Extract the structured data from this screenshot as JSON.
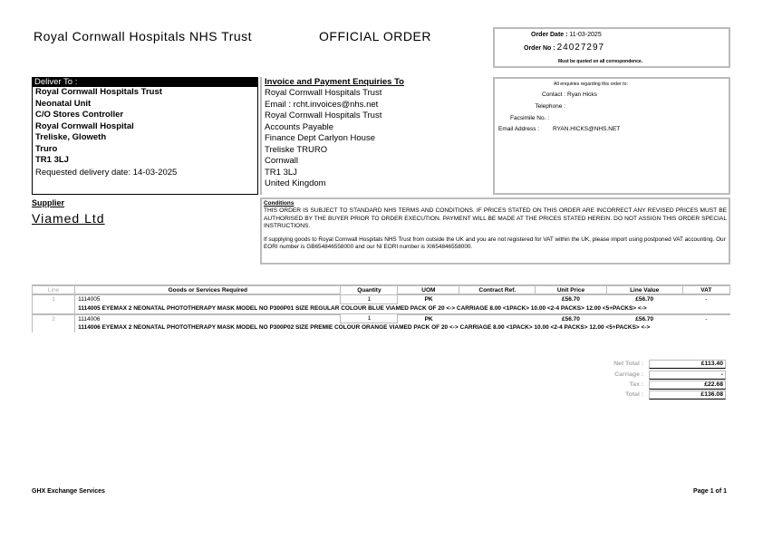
{
  "header": {
    "org": "Royal Cornwall Hospitals NHS Trust",
    "doc_title": "OFFICIAL ORDER",
    "order_date_label": "Order Date :",
    "order_date": "11-03-2025",
    "order_no_label": "Order No :",
    "order_no": "24027297",
    "quote_note": "Must be quoted on all correspondence."
  },
  "deliver": {
    "heading": "Deliver To :",
    "lines": [
      "Royal Cornwall Hospitals Trust",
      "Neonatal Unit",
      "C/O Stores Controller",
      "Royal Cornwall Hospital",
      "Treliske, Gloweth",
      "Truro",
      "TR1 3LJ"
    ],
    "requested": "Requested delivery date: 14-03-2025"
  },
  "invoice": {
    "heading": "Invoice and Payment Enquiries To",
    "lines": [
      "Royal Cornwall Hospitals Trust",
      "Email : rcht.invoices@nhs.net",
      "Royal Cornwall Hospitals Trust",
      "Accounts Payable",
      "Finance Dept Carlyon House",
      "Treliske TRURO",
      "Cornwall",
      "TR1 3LJ",
      "United Kingdom"
    ]
  },
  "enquiries": {
    "heading": "All enquiries regarding this order to:",
    "contact_label": "Contact :",
    "contact": "Ryan Hicks",
    "telephone_label": "Telephone :",
    "telephone": "",
    "fax_label": "Facsimile No. :",
    "fax": "",
    "email_label": "Email Address :",
    "email": "RYAN.HICKS@NHS.NET"
  },
  "supplier": {
    "heading": "Supplier",
    "name": "Viamed Ltd"
  },
  "conditions": {
    "heading": "Conditions",
    "p1": "THIS ORDER IS SUBJECT TO STANDARD NHS TERMS AND CONDITIONS. IF PRICES STATED ON THIS ORDER ARE INCORRECT ANY REVISED PRICES MUST BE AUTHORISED BY THE BUYER PRIOR TO ORDER EXECUTION. PAYMENT WILL BE MADE AT THE PRICES STATED HEREIN. DO NOT ASSIGN THIS ORDER SPECIAL INSTRUCTIONS.",
    "p2": "If supplying goods to Royal Cornwall Hospitals NHS Trust from outside the UK and you are not registered for VAT within the UK, please import using postponed VAT accounting. Our EORI number is GB654846558000 and our NI EORI number is XI654846558000."
  },
  "table": {
    "columns": [
      "Line",
      "Goods or Services Required",
      "Quantity",
      "UOM",
      "Contract Ref.",
      "Unit Price",
      "Line Value",
      "VAT"
    ],
    "rows": [
      {
        "line": "1",
        "code": "1114005",
        "qty": "1",
        "uom": "PK",
        "contract": "",
        "unit_price": "£56.70",
        "line_value": "£56.70",
        "vat": "-",
        "desc": "1114005 EYEMAX 2 NEONATAL PHOTOTHERAPY MASK MODEL NO P300P01 SIZE REGULAR COLOUR BLUE VIAMED PACK OF 20 <-> CARRIAGE 8.00 <1PACK> 10.00 <2-4 PACKS> 12.00 <5+PACKS> <->"
      },
      {
        "line": "2",
        "code": "1114006",
        "qty": "1",
        "uom": "PK",
        "contract": "",
        "unit_price": "£56.70",
        "line_value": "£56.70",
        "vat": "-",
        "desc": "1114006 EYEMAX 2 NEONATAL PHOTOTHERAPY MASK MODEL NO P300P02 SIZE PREMIE COLOUR ORANGE VIAMED PACK OF 20 <-> CARRIAGE 8.00 <1PACK> 10.00 <2-4 PACKS> 12.00 <5+PACKS> <->"
      }
    ]
  },
  "totals": {
    "net_label": "Net Total :",
    "net": "£113.40",
    "carriage_label": "Carriage :",
    "carriage": "-",
    "tax_label": "Tax :",
    "tax": "£22.68",
    "total_label": "Total :",
    "total": "£136.08"
  },
  "footer": {
    "left": "GHX Exchange Services",
    "right": "Page 1 of 1"
  }
}
